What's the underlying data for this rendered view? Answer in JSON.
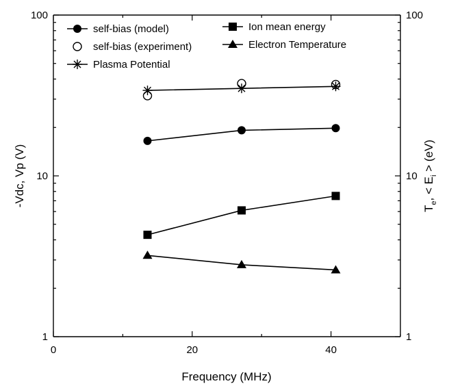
{
  "chart_data": {
    "type": "line",
    "xlabel": "Frequency (MHz)",
    "ylabel": "-Vdc, Vp (V)",
    "y2label": "T_e, <E_i> (eV)",
    "xlim": [
      0,
      50
    ],
    "ylim": [
      1,
      100
    ],
    "y2lim": [
      1,
      100
    ],
    "yscale": "log",
    "x_ticks": [
      "0",
      "20",
      "40"
    ],
    "y_ticks": [
      "1",
      "10",
      "100"
    ],
    "y2_ticks": [
      "1",
      "10",
      "100"
    ],
    "grid": false,
    "legend_position": "top",
    "x": [
      13.56,
      27.12,
      40.68
    ],
    "series": [
      {
        "name": "self-bias (model)",
        "marker": "filled-circle",
        "line": true,
        "axis": "left",
        "values": [
          16.5,
          19.2,
          19.8
        ]
      },
      {
        "name": "self-bias (experiment)",
        "marker": "open-circle",
        "line": false,
        "axis": "left",
        "values": [
          31.5,
          37.5,
          37.0
        ]
      },
      {
        "name": "Plasma Potential",
        "marker": "asterisk",
        "line": true,
        "axis": "left",
        "values": [
          34.0,
          35.0,
          36.0
        ]
      },
      {
        "name": "Ion mean energy",
        "marker": "filled-square",
        "line": true,
        "axis": "right",
        "values": [
          4.3,
          6.1,
          7.5
        ]
      },
      {
        "name": "Electron Temperature",
        "marker": "filled-triangle",
        "line": true,
        "axis": "right",
        "values": [
          3.2,
          2.8,
          2.6
        ]
      }
    ]
  }
}
